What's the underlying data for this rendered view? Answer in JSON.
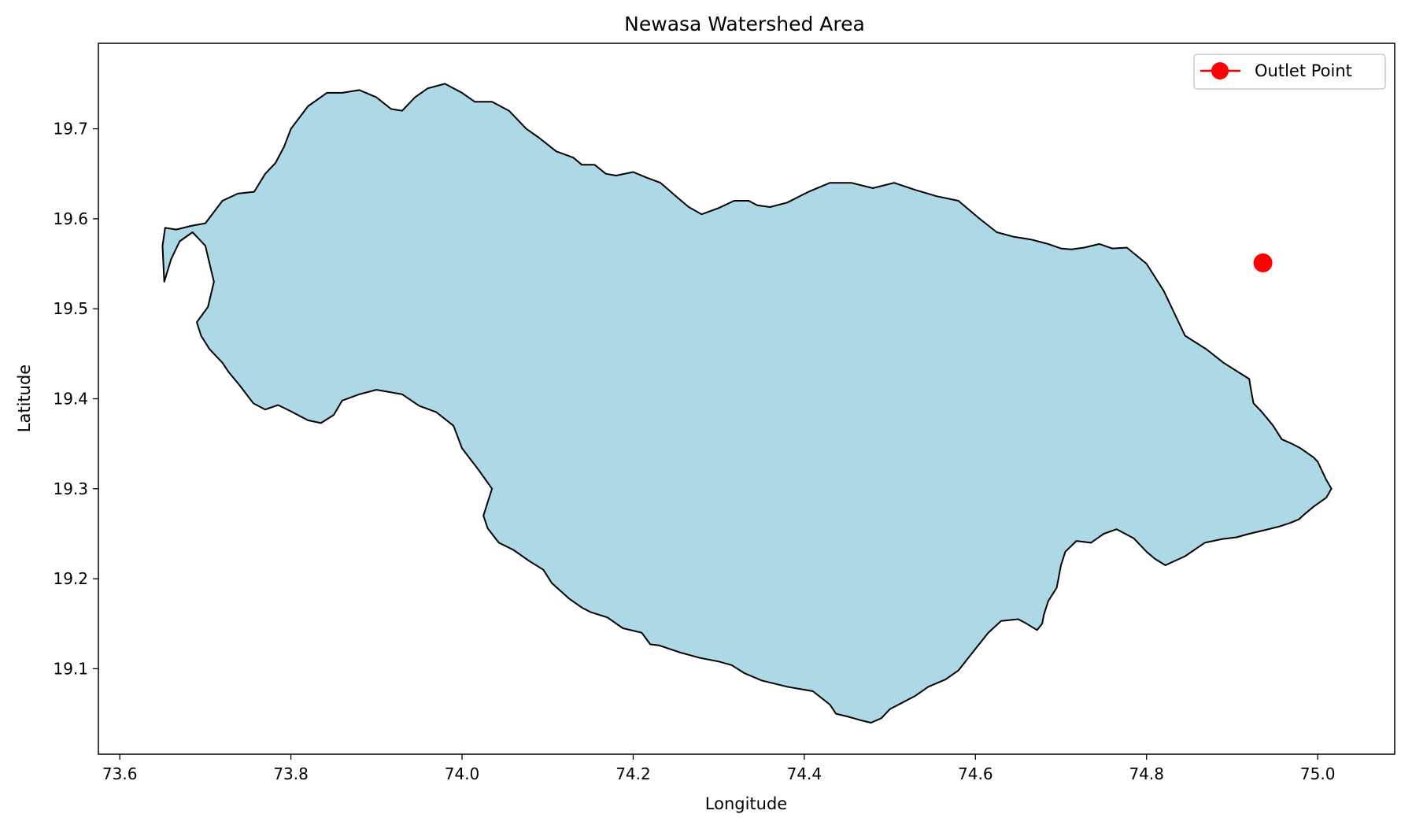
{
  "chart_data": {
    "type": "area",
    "title": "Newasa Watershed Area",
    "xlabel": "Longitude",
    "ylabel": "Latitude",
    "xlim": [
      73.575,
      75.09
    ],
    "ylim": [
      19.005,
      19.795
    ],
    "x_ticks": [
      "73.6",
      "73.8",
      "74.0",
      "74.2",
      "74.4",
      "74.6",
      "74.8",
      "75.0"
    ],
    "y_ticks": [
      "19.1",
      "19.2",
      "19.3",
      "19.4",
      "19.5",
      "19.6",
      "19.7"
    ],
    "x_tick_values": [
      73.6,
      73.8,
      74.0,
      74.2,
      74.4,
      74.6,
      74.8,
      75.0
    ],
    "y_tick_values": [
      19.1,
      19.2,
      19.3,
      19.4,
      19.5,
      19.6,
      19.7
    ],
    "grid": false,
    "legend_position": "upper right",
    "series": [
      {
        "name": "",
        "kind": "polygon",
        "fill": "#add8e6",
        "edge": "#000000",
        "x": [
          73.653,
          73.666,
          73.683,
          73.7,
          73.712,
          73.72,
          73.738,
          73.757,
          73.77,
          73.782,
          73.792,
          73.8,
          73.82,
          73.842,
          73.86,
          73.88,
          73.9,
          73.917,
          73.93,
          73.945,
          73.96,
          73.98,
          74.0,
          74.015,
          74.035,
          74.055,
          74.075,
          74.09,
          74.11,
          74.13,
          74.14,
          74.155,
          74.168,
          74.18,
          74.2,
          74.215,
          74.232,
          74.25,
          74.265,
          74.28,
          74.3,
          74.318,
          74.335,
          74.345,
          74.36,
          74.38,
          74.405,
          74.43,
          74.455,
          74.48,
          74.505,
          74.53,
          74.555,
          74.58,
          74.605,
          74.625,
          74.645,
          74.665,
          74.685,
          74.7,
          74.712,
          74.727,
          74.745,
          74.76,
          74.777,
          74.8,
          74.82,
          74.845,
          74.87,
          74.89,
          74.91,
          74.92,
          74.922,
          74.925,
          74.935,
          74.948,
          74.958,
          74.97,
          74.98,
          74.995,
          75.0,
          75.005,
          75.01,
          75.016,
          75.01,
          74.995,
          74.985,
          74.978,
          74.968,
          74.955,
          74.938,
          74.92,
          74.905,
          74.888,
          74.868,
          74.845,
          74.822,
          74.81,
          74.8,
          74.785,
          74.765,
          74.75,
          74.735,
          74.718,
          74.705,
          74.7,
          74.695,
          74.685,
          74.68,
          74.678,
          74.672,
          74.66,
          74.65,
          74.63,
          74.615,
          74.6,
          74.59,
          74.58,
          74.565,
          74.545,
          74.53,
          74.51,
          74.5,
          74.49,
          74.478,
          74.465,
          74.45,
          74.437,
          74.43,
          74.41,
          74.38,
          74.35,
          74.33,
          74.315,
          74.3,
          74.278,
          74.255,
          74.23,
          74.22,
          74.21,
          74.188,
          74.17,
          74.15,
          74.14,
          74.125,
          74.105,
          74.095,
          74.078,
          74.06,
          74.043,
          74.03,
          74.025,
          74.03,
          74.035,
          74.02,
          74.0,
          73.99,
          73.97,
          73.95,
          73.93,
          73.9,
          73.88,
          73.86,
          73.85,
          73.835,
          73.82,
          73.8,
          73.785,
          73.77,
          73.756,
          73.74,
          73.727,
          73.72,
          73.705,
          73.695,
          73.69,
          73.703,
          73.71,
          73.705,
          73.7,
          73.685,
          73.67,
          73.66,
          73.652,
          73.65,
          73.653
        ],
        "y": [
          19.59,
          19.588,
          19.592,
          19.595,
          19.61,
          19.62,
          19.628,
          19.63,
          19.65,
          19.662,
          19.68,
          19.7,
          19.725,
          19.74,
          19.74,
          19.743,
          19.735,
          19.722,
          19.72,
          19.735,
          19.745,
          19.75,
          19.74,
          19.73,
          19.73,
          19.72,
          19.7,
          19.69,
          19.675,
          19.668,
          19.66,
          19.66,
          19.65,
          19.648,
          19.652,
          19.646,
          19.64,
          19.625,
          19.613,
          19.605,
          19.612,
          19.62,
          19.62,
          19.615,
          19.613,
          19.618,
          19.63,
          19.64,
          19.64,
          19.634,
          19.64,
          19.632,
          19.625,
          19.62,
          19.6,
          19.585,
          19.58,
          19.577,
          19.572,
          19.567,
          19.566,
          19.568,
          19.572,
          19.567,
          19.568,
          19.55,
          19.52,
          19.47,
          19.455,
          19.44,
          19.428,
          19.422,
          19.41,
          19.395,
          19.385,
          19.37,
          19.355,
          19.35,
          19.345,
          19.335,
          19.33,
          19.32,
          19.31,
          19.3,
          19.29,
          19.28,
          19.272,
          19.266,
          19.262,
          19.258,
          19.254,
          19.25,
          19.246,
          19.244,
          19.24,
          19.225,
          19.215,
          19.222,
          19.23,
          19.245,
          19.255,
          19.25,
          19.24,
          19.242,
          19.23,
          19.215,
          19.19,
          19.175,
          19.16,
          19.15,
          19.143,
          19.15,
          19.155,
          19.153,
          19.14,
          19.122,
          19.11,
          19.098,
          19.088,
          19.08,
          19.07,
          19.06,
          19.055,
          19.045,
          19.04,
          19.043,
          19.047,
          19.05,
          19.06,
          19.075,
          19.08,
          19.087,
          19.095,
          19.104,
          19.108,
          19.112,
          19.118,
          19.126,
          19.127,
          19.14,
          19.145,
          19.157,
          19.163,
          19.168,
          19.178,
          19.195,
          19.21,
          19.22,
          19.232,
          19.24,
          19.256,
          19.27,
          19.285,
          19.3,
          19.32,
          19.345,
          19.37,
          19.385,
          19.392,
          19.405,
          19.41,
          19.405,
          19.398,
          19.382,
          19.373,
          19.376,
          19.386,
          19.393,
          19.388,
          19.395,
          19.415,
          19.43,
          19.44,
          19.455,
          19.47,
          19.485,
          19.502,
          19.53,
          19.55,
          19.57,
          19.585,
          19.575,
          19.555,
          19.53,
          19.57,
          19.59
        ]
      },
      {
        "name": "Outlet Point",
        "kind": "marker",
        "color": "#ff0000",
        "x": [
          74.936
        ],
        "y": [
          19.551
        ]
      }
    ]
  }
}
